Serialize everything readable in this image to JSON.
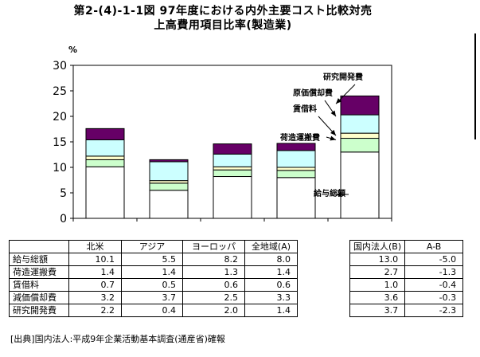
{
  "title": {
    "line1": "第2-(4)-1-1図 97年度における内外主要コスト比較対売",
    "line2": "上高費用項目比率(製造業)"
  },
  "chart_data": {
    "type": "bar",
    "stacked": true,
    "categories": [
      "北米",
      "アジア",
      "ヨーロッパ",
      "全地域(A)",
      "国内法人(B)"
    ],
    "series": [
      {
        "name": "給与総額",
        "values": [
          10.1,
          5.5,
          8.2,
          8.0,
          13.0
        ],
        "color": "#ffffff"
      },
      {
        "name": "荷造運搬費",
        "values": [
          1.4,
          1.4,
          1.3,
          1.4,
          2.7
        ],
        "color": "#ccffcc"
      },
      {
        "name": "賃借料",
        "values": [
          0.7,
          0.5,
          0.6,
          0.6,
          1.0
        ],
        "color": "#ffffcc"
      },
      {
        "name": "原価償却費",
        "values": [
          3.2,
          3.7,
          2.5,
          3.3,
          3.6
        ],
        "color": "#ccffff"
      },
      {
        "name": "研究開発費",
        "values": [
          2.2,
          0.4,
          2.0,
          1.4,
          3.7
        ],
        "color": "#660066"
      }
    ],
    "ylabel": "%",
    "ylim": [
      0,
      30
    ],
    "yticks": [
      "0",
      "5",
      "10",
      "15",
      "20",
      "25",
      "30"
    ],
    "grid": false,
    "annotations": [
      "研究開発費",
      "原価償却費",
      "賃借料",
      "荷造運搬費",
      "給与総額"
    ]
  },
  "table": {
    "headers": [
      "北米",
      "アジア",
      "ヨーロッパ",
      "全地域(A)",
      "国内法人(B)",
      "A-B"
    ],
    "rows": [
      {
        "label": "給与総額",
        "values": [
          "10.1",
          "5.5",
          "8.2",
          "8.0",
          "13.0",
          "-5.0"
        ]
      },
      {
        "label": "荷造運搬費",
        "values": [
          "1.4",
          "1.4",
          "1.3",
          "1.4",
          "2.7",
          "-1.3"
        ]
      },
      {
        "label": "賃借料",
        "values": [
          "0.7",
          "0.5",
          "0.6",
          "0.6",
          "1.0",
          "-0.4"
        ]
      },
      {
        "label": "減価償却費",
        "values": [
          "3.2",
          "3.7",
          "2.5",
          "3.3",
          "3.6",
          "-0.3"
        ]
      },
      {
        "label": "研究開発費",
        "values": [
          "2.2",
          "0.4",
          "2.0",
          "1.4",
          "3.7",
          "-2.3"
        ]
      }
    ]
  },
  "source": "[出典]国内法人:平成9年企業活動基本調査(通産省)確報"
}
